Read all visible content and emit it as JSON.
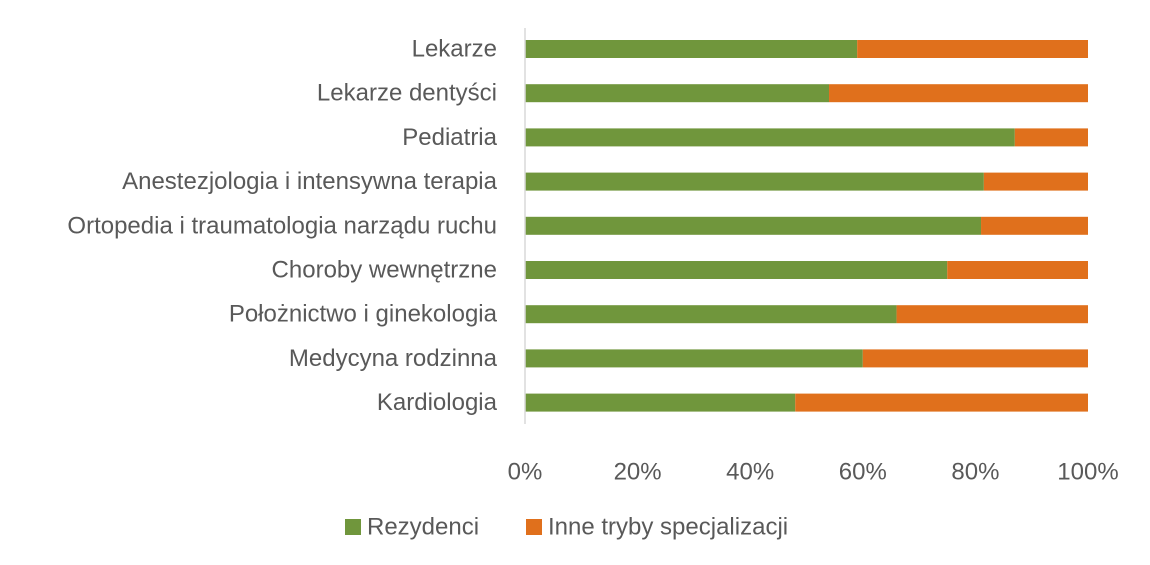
{
  "chart_data": {
    "type": "bar",
    "orientation": "horizontal",
    "stacked": "percent",
    "categories": [
      "Lekarze",
      "Lekarze dentyści",
      "Pediatria",
      "Anestezjologia i intensywna terapia",
      "Ortopedia i traumatologia narządu ruchu",
      "Choroby wewnętrzne",
      "Położnictwo i ginekologia",
      "Medycyna rodzinna",
      "Kardiologia"
    ],
    "series": [
      {
        "name": "Rezydenci",
        "color": "#70963c",
        "values": [
          59,
          54,
          87,
          81.5,
          81,
          75,
          66,
          60,
          48
        ]
      },
      {
        "name": "Inne tryby specjalizacji",
        "color": "#e0701c",
        "values": [
          41,
          46,
          13,
          18.5,
          19,
          25,
          34,
          40,
          52
        ]
      }
    ],
    "x_ticks": [
      "0%",
      "20%",
      "40%",
      "60%",
      "80%",
      "100%"
    ],
    "xlim": [
      0,
      100
    ],
    "grid": false,
    "legend_position": "bottom-center",
    "axis_color": "#d9d9d9"
  }
}
